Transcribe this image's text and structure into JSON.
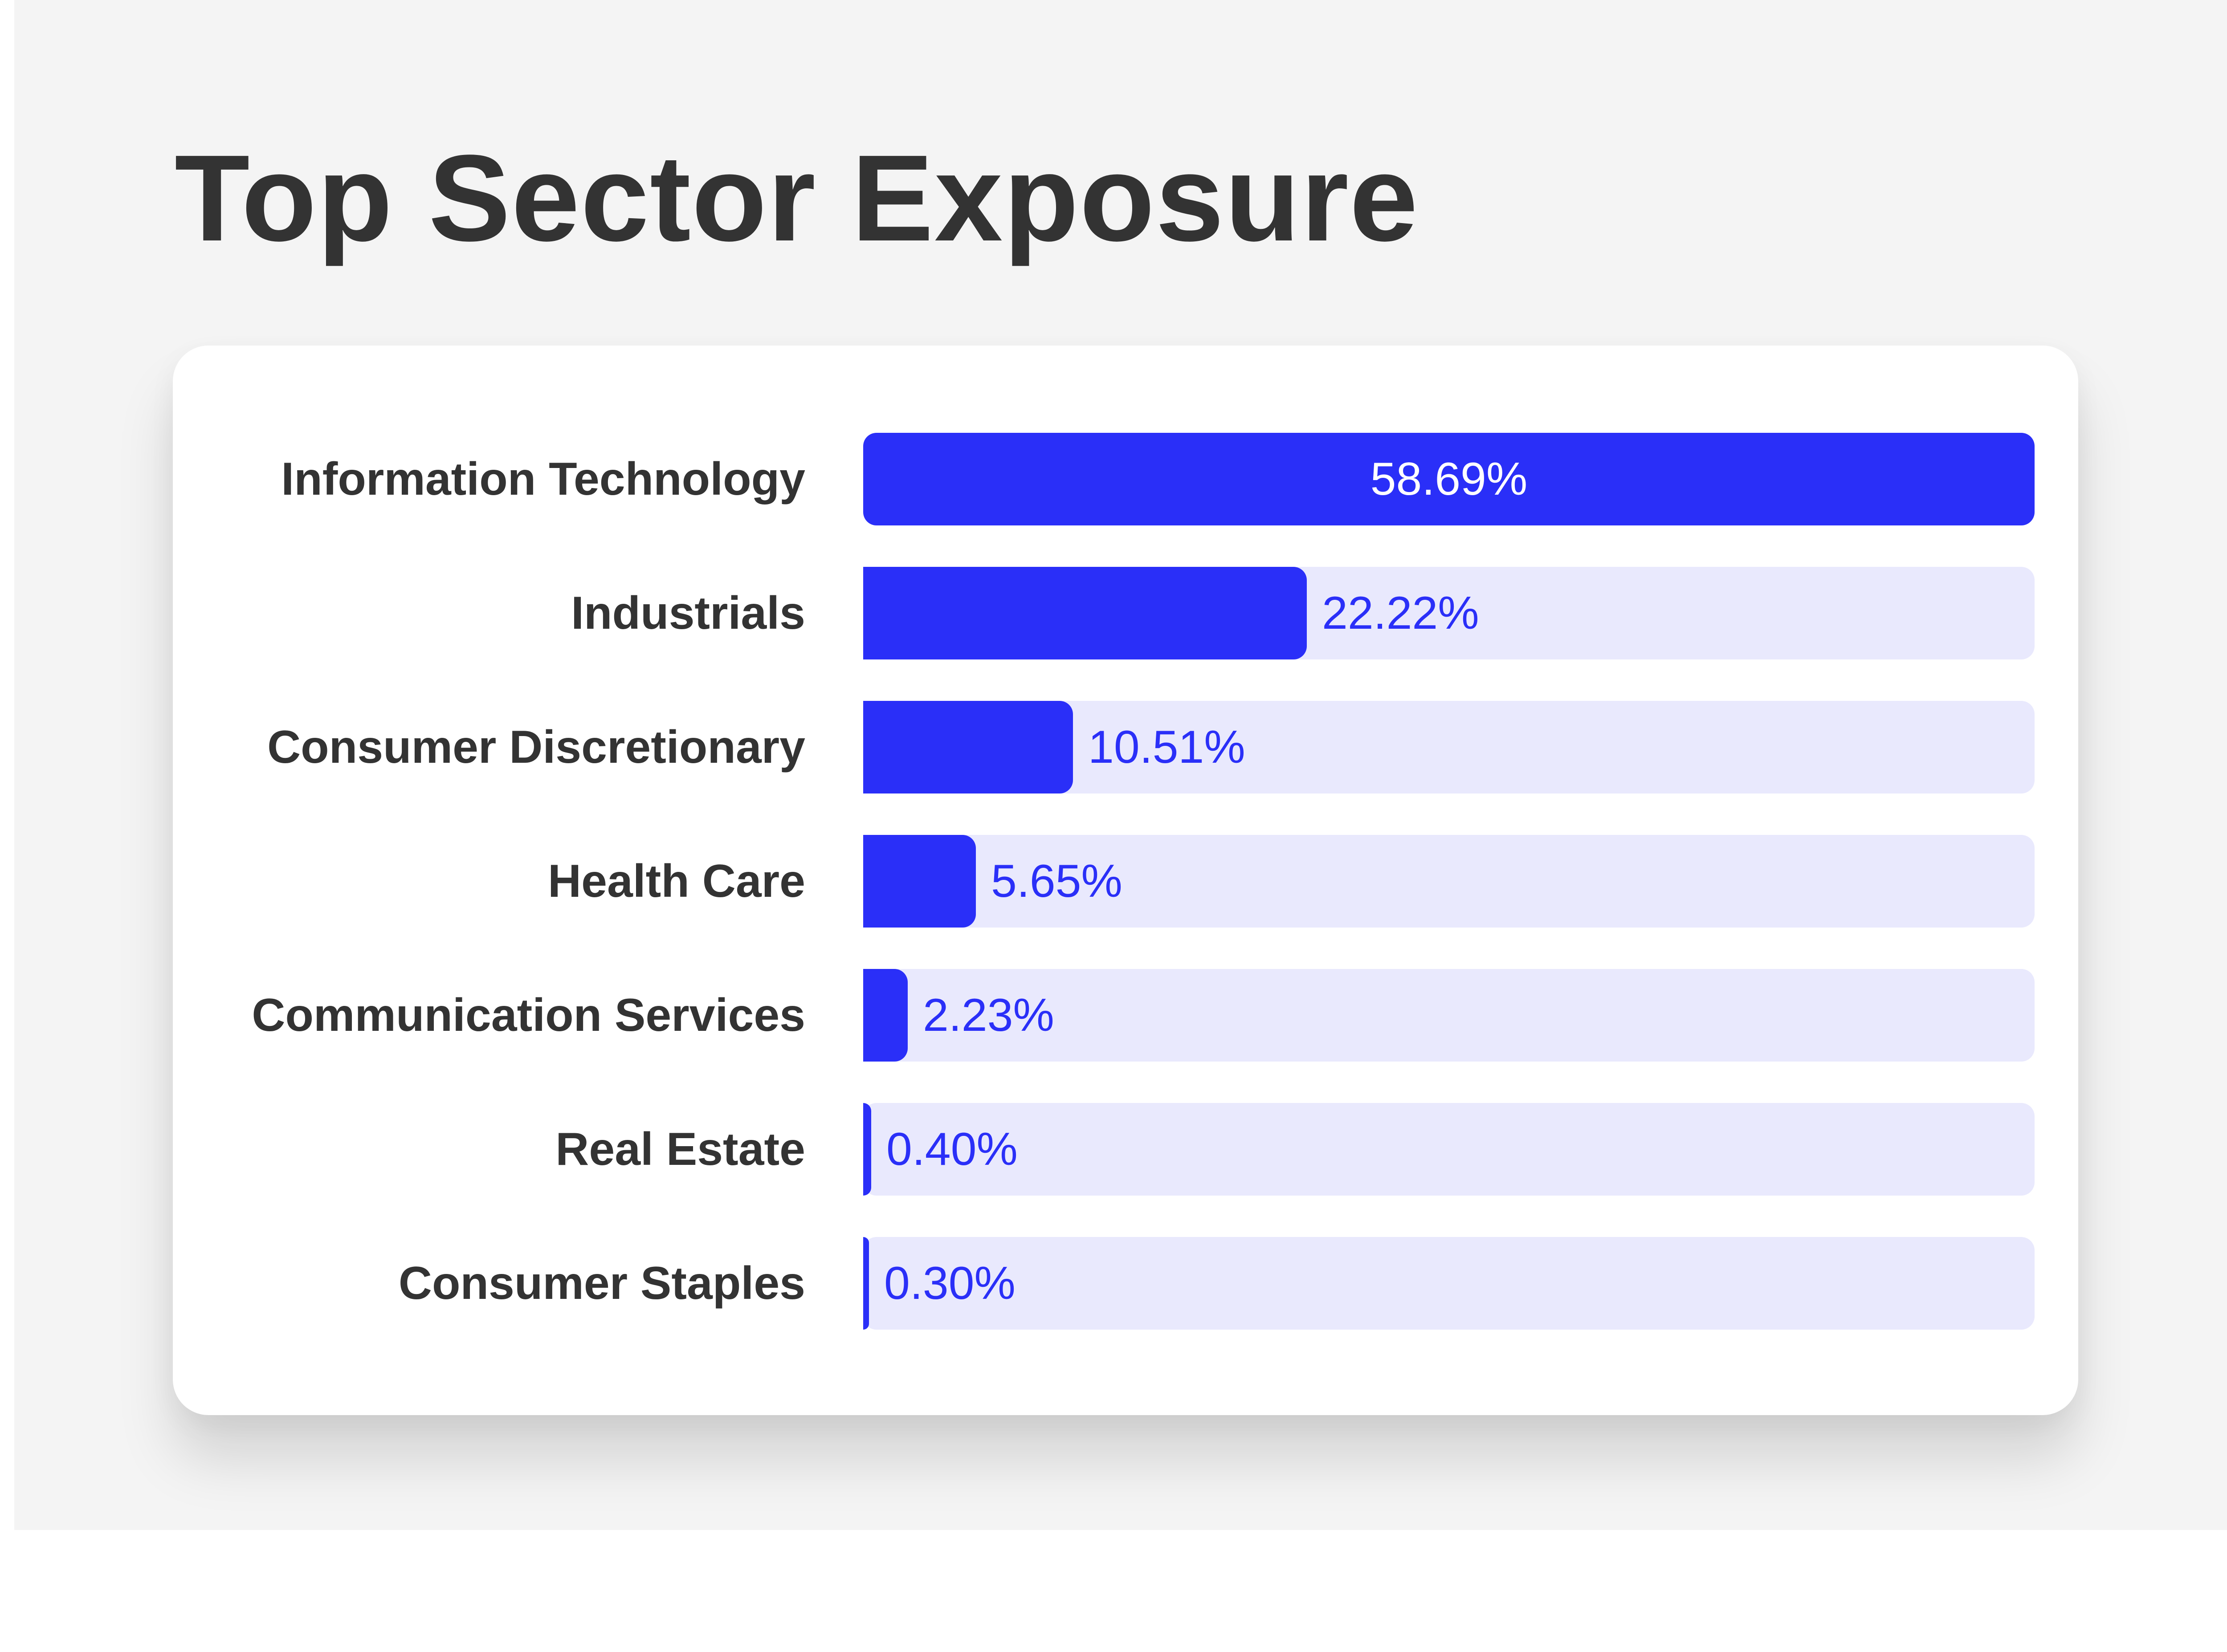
{
  "chart_data": {
    "type": "bar",
    "orientation": "horizontal",
    "title": "Top Sector Exposure",
    "categories": [
      "Information Technology",
      "Industrials",
      "Consumer Discretionary",
      "Health Care",
      "Communication Services",
      "Real Estate",
      "Consumer Staples"
    ],
    "values": [
      58.69,
      22.22,
      10.51,
      5.65,
      2.23,
      0.4,
      0.3
    ],
    "value_labels": [
      "58.69%",
      "22.22%",
      "10.51%",
      "5.65%",
      "2.23%",
      "0.40%",
      "0.30%"
    ],
    "xlim": [
      0,
      58.69
    ],
    "xlabel": "",
    "ylabel": "",
    "grid": false,
    "legend": "none"
  },
  "colors": {
    "bar": "#2a2ff8",
    "track": "#e9e9fd",
    "label_text": "#333333"
  }
}
